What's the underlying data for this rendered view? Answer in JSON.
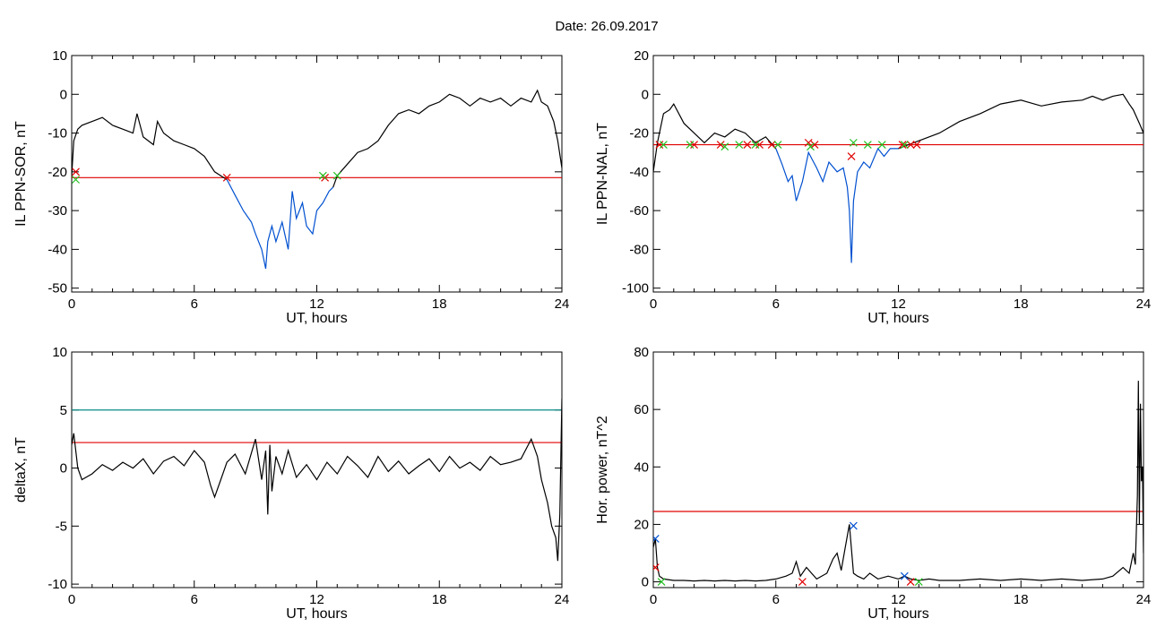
{
  "title": "Date:  26.09.2017",
  "colors": {
    "black": "#000000",
    "red": "#e00000",
    "blue": "#0050d0",
    "teal": "#0a8a8a",
    "green": "#22c020"
  },
  "chart_data": [
    {
      "id": "p1",
      "type": "line",
      "xlabel": "UT, hours",
      "ylabel": "IL PPN-SOR, nT",
      "xlim": [
        0,
        24
      ],
      "ylim": [
        -51,
        10
      ],
      "xticks": [
        0,
        6,
        12,
        18,
        24
      ],
      "yticks": [
        10,
        0,
        -10,
        -20,
        -30,
        -40,
        -50
      ],
      "grid": false,
      "hlines": [
        {
          "y": -21.5,
          "color": "#e00000"
        }
      ],
      "series": [
        {
          "color": "#000000",
          "x": [
            0,
            0.1,
            0.3,
            0.5,
            1,
            1.5,
            2,
            2.5,
            3,
            3.2,
            3.5,
            4,
            4.2,
            4.5,
            5,
            5.5,
            6,
            6.5,
            7,
            7.3,
            7.6
          ],
          "y": [
            -21,
            -12,
            -9,
            -8,
            -7,
            -6,
            -8,
            -9,
            -10,
            -5,
            -11,
            -13,
            -7,
            -10,
            -12,
            -13,
            -14,
            -16,
            -20,
            -21,
            -22
          ]
        },
        {
          "color": "#0050d0",
          "x": [
            7.6,
            8,
            8.4,
            8.8,
            9,
            9.3,
            9.5,
            9.6,
            9.8,
            10,
            10.3,
            10.6,
            10.8,
            11,
            11.3,
            11.5,
            11.8,
            12,
            12.3,
            12.6,
            12.8
          ],
          "y": [
            -22,
            -26,
            -30,
            -33,
            -36,
            -40,
            -45,
            -38,
            -34,
            -38,
            -33,
            -40,
            -25,
            -32,
            -28,
            -34,
            -36,
            -30,
            -28,
            -25,
            -24
          ]
        },
        {
          "color": "#000000",
          "x": [
            12.8,
            13,
            13.5,
            14,
            14.5,
            15,
            15.5,
            16,
            16.5,
            17,
            17.5,
            18,
            18.5,
            19,
            19.5,
            20,
            20.5,
            21,
            21.5,
            22,
            22.5,
            22.8,
            23,
            23.3,
            23.6,
            23.8,
            24
          ],
          "y": [
            -24,
            -21,
            -18,
            -15,
            -14,
            -12,
            -8,
            -5,
            -4,
            -5,
            -3,
            -2,
            0,
            -1,
            -3,
            -1,
            -2,
            -1,
            -3,
            -1,
            -2,
            1,
            -2,
            -3,
            -7,
            -12,
            -19
          ]
        }
      ],
      "markers": {
        "red": [
          [
            0.2,
            -20
          ],
          [
            7.6,
            -21.5
          ],
          [
            12.4,
            -21.5
          ]
        ],
        "green": [
          [
            0.2,
            -22
          ],
          [
            12.3,
            -21
          ],
          [
            13,
            -21
          ]
        ]
      }
    },
    {
      "id": "p2",
      "type": "line",
      "xlabel": "UT, hours",
      "ylabel": "IL PPN-NAL, nT",
      "xlim": [
        0,
        24
      ],
      "ylim": [
        -102,
        20
      ],
      "xticks": [
        0,
        6,
        12,
        18,
        24
      ],
      "yticks": [
        20,
        0,
        -20,
        -40,
        -60,
        -80,
        -100
      ],
      "grid": false,
      "hlines": [
        {
          "y": -26,
          "color": "#e00000"
        }
      ],
      "series": [
        {
          "color": "#000000",
          "x": [
            0,
            0.2,
            0.5,
            0.8,
            1,
            1.5,
            2,
            2.5,
            3,
            3.5,
            4,
            4.5,
            5,
            5.5,
            6
          ],
          "y": [
            -40,
            -25,
            -10,
            -8,
            -5,
            -15,
            -20,
            -25,
            -20,
            -22,
            -18,
            -20,
            -25,
            -22,
            -28
          ]
        },
        {
          "color": "#0050d0",
          "x": [
            6,
            6.3,
            6.6,
            6.8,
            7,
            7.3,
            7.6,
            8,
            8.3,
            8.6,
            9,
            9.3,
            9.5,
            9.6,
            9.7,
            9.8,
            10,
            10.3,
            10.6,
            11,
            11.3,
            11.6,
            12
          ],
          "y": [
            -28,
            -36,
            -45,
            -42,
            -55,
            -45,
            -30,
            -38,
            -45,
            -35,
            -40,
            -38,
            -48,
            -60,
            -87,
            -55,
            -40,
            -35,
            -38,
            -28,
            -32,
            -28,
            -28
          ]
        },
        {
          "color": "#000000",
          "x": [
            12,
            12.5,
            13,
            14,
            15,
            16,
            17,
            18,
            19,
            20,
            21,
            21.5,
            22,
            22.5,
            23,
            23.3,
            23.5,
            23.8,
            24
          ],
          "y": [
            -28,
            -26,
            -24,
            -20,
            -14,
            -10,
            -5,
            -3,
            -6,
            -4,
            -3,
            -1,
            -3,
            -1,
            0,
            -5,
            -8,
            -15,
            -20
          ]
        }
      ],
      "markers": {
        "red": [
          [
            0.3,
            -26
          ],
          [
            2,
            -26
          ],
          [
            3.3,
            -26
          ],
          [
            4.6,
            -26
          ],
          [
            5.2,
            -26
          ],
          [
            5.8,
            -26
          ],
          [
            7.6,
            -25
          ],
          [
            7.9,
            -26
          ],
          [
            9.7,
            -32
          ],
          [
            12.2,
            -26
          ],
          [
            12.6,
            -26
          ],
          [
            12.9,
            -26
          ]
        ],
        "green": [
          [
            0.5,
            -26
          ],
          [
            1.8,
            -26
          ],
          [
            3.5,
            -27
          ],
          [
            4.2,
            -26
          ],
          [
            5,
            -26
          ],
          [
            6.1,
            -26
          ],
          [
            7.7,
            -27
          ],
          [
            9.8,
            -25
          ],
          [
            10.5,
            -26
          ],
          [
            11.2,
            -26
          ],
          [
            12.3,
            -26
          ]
        ]
      }
    },
    {
      "id": "p3",
      "type": "line",
      "xlabel": "UT, hours",
      "ylabel": "deltaX, nT",
      "xlim": [
        0,
        24
      ],
      "ylim": [
        -10.3,
        10
      ],
      "xticks": [
        0,
        6,
        12,
        18,
        24
      ],
      "yticks": [
        10,
        5,
        0,
        -5,
        -10
      ],
      "grid": false,
      "hlines": [
        {
          "y": 5,
          "color": "#0a8a8a"
        },
        {
          "y": 2.2,
          "color": "#e00000"
        }
      ],
      "series": [
        {
          "color": "#000000",
          "x": [
            0,
            0.1,
            0.3,
            0.5,
            1,
            1.5,
            2,
            2.5,
            3,
            3.5,
            4,
            4.5,
            5,
            5.5,
            6,
            6.5,
            6.8,
            7,
            7.3,
            7.6,
            8,
            8.5,
            9,
            9.3,
            9.5,
            9.6,
            9.7,
            9.8,
            10,
            10.3,
            10.6,
            11,
            11.5,
            12,
            12.5,
            13,
            13.5,
            14,
            14.5,
            15,
            15.5,
            16,
            16.5,
            17,
            17.5,
            18,
            18.5,
            19,
            19.5,
            20,
            20.5,
            21,
            21.5,
            22,
            22.5,
            22.8,
            23,
            23.3,
            23.5,
            23.7,
            23.8,
            23.9,
            24
          ],
          "y": [
            2,
            3,
            0,
            -1,
            -0.5,
            0.3,
            -0.2,
            0.5,
            0,
            0.8,
            -0.5,
            0.6,
            1,
            0.2,
            1.5,
            0.5,
            -1.5,
            -2.5,
            -1,
            0.5,
            1.2,
            -0.5,
            2.5,
            -1,
            1.5,
            -4,
            2,
            -2,
            1,
            -0.5,
            1.5,
            -0.8,
            0.3,
            -1,
            0.5,
            -0.5,
            1,
            0.2,
            -0.8,
            1,
            -0.3,
            0.6,
            -0.5,
            0.2,
            0.8,
            -0.3,
            1,
            0,
            0.5,
            -0.2,
            1,
            0.3,
            0.5,
            0.8,
            2.5,
            1,
            -1,
            -3,
            -5,
            -6,
            -8,
            -4,
            6
          ]
        }
      ],
      "markers": {
        "red": [],
        "green": []
      }
    },
    {
      "id": "p4",
      "type": "line",
      "xlabel": "UT, hours",
      "ylabel": "Hor. power, nT^2",
      "xlim": [
        0,
        24
      ],
      "ylim": [
        -2,
        80
      ],
      "xticks": [
        0,
        6,
        12,
        18,
        24
      ],
      "yticks": [
        80,
        60,
        40,
        20,
        0
      ],
      "grid": false,
      "hlines": [
        {
          "y": 24.5,
          "color": "#e00000"
        }
      ],
      "series": [
        {
          "color": "#000000",
          "x": [
            0,
            0.1,
            0.2,
            0.3,
            0.5,
            1,
            1.5,
            2,
            2.5,
            3,
            3.5,
            4,
            4.5,
            5,
            5.5,
            6,
            6.5,
            6.8,
            7,
            7.2,
            7.5,
            8,
            8.5,
            8.8,
            9,
            9.2,
            9.4,
            9.6,
            9.8,
            10,
            10.3,
            10.6,
            11,
            11.5,
            12,
            12.3,
            12.6,
            13,
            13.5,
            14,
            15,
            16,
            17,
            18,
            19,
            20,
            21,
            22,
            22.5,
            23,
            23.3,
            23.5,
            23.6,
            23.7,
            23.75,
            23.8,
            23.85,
            23.9,
            23.95,
            24
          ],
          "y": [
            12,
            15,
            5,
            2,
            1,
            0.5,
            0.5,
            0.3,
            0.5,
            0.3,
            0.5,
            0.3,
            0.5,
            0.3,
            0.5,
            1,
            2,
            3,
            7,
            2,
            5,
            1,
            3,
            8,
            10,
            4,
            12,
            20,
            3,
            2,
            1,
            3,
            1,
            2,
            1,
            2,
            1,
            0.5,
            1,
            0.5,
            0.5,
            1,
            0.5,
            1,
            0.5,
            1,
            0.5,
            1,
            2,
            5,
            3,
            10,
            6,
            30,
            70,
            20,
            62,
            35,
            40,
            10
          ]
        }
      ],
      "markers": {
        "red": [
          [
            0.1,
            5
          ],
          [
            7.3,
            0
          ],
          [
            12.6,
            0
          ]
        ],
        "green": [
          [
            0.4,
            0
          ],
          [
            13,
            0
          ]
        ],
        "blue": [
          [
            0.1,
            15
          ],
          [
            9.8,
            19.5
          ],
          [
            12.3,
            2
          ]
        ]
      }
    }
  ]
}
